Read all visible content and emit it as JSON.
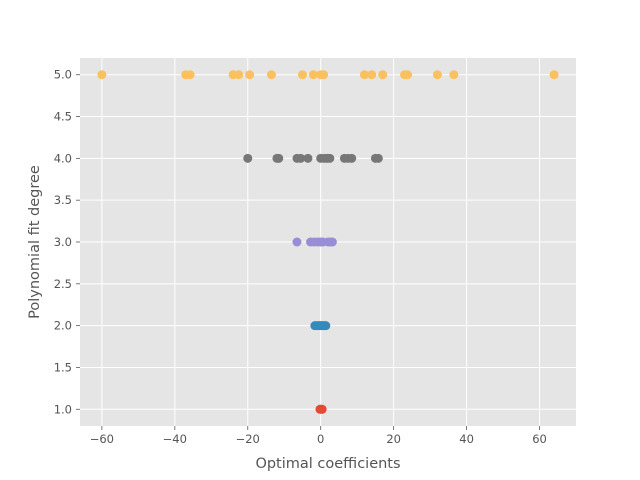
{
  "chart_data": {
    "type": "scatter",
    "xlabel": "Optimal coefficients",
    "ylabel": "Polynomial fit degree",
    "xlim": [
      -66,
      70
    ],
    "ylim": [
      0.8,
      5.2
    ],
    "xticks": [
      -60,
      -40,
      -20,
      0,
      20,
      40,
      60
    ],
    "yticks": [
      1.0,
      1.5,
      2.0,
      2.5,
      3.0,
      3.5,
      4.0,
      4.5,
      5.0
    ],
    "xtick_labels": [
      "−60",
      "−40",
      "−20",
      "0",
      "20",
      "40",
      "60"
    ],
    "ytick_labels": [
      "1.0",
      "1.5",
      "2.0",
      "2.5",
      "3.0",
      "3.5",
      "4.0",
      "4.5",
      "5.0"
    ],
    "grid": true,
    "style": "ggplot",
    "series": [
      {
        "color": "#E24A33",
        "x": [
          -0.2,
          0.1,
          0.4
        ],
        "y": [
          1,
          1,
          1
        ]
      },
      {
        "color": "#348ABD",
        "x": [
          -1.6,
          -1.1,
          -0.6,
          -0.2,
          0.2,
          0.6,
          1.0,
          1.4
        ],
        "y": [
          2,
          2,
          2,
          2,
          2,
          2,
          2,
          2
        ]
      },
      {
        "color": "#988ED5",
        "x": [
          -6.5,
          -2.8,
          -1.8,
          -0.8,
          0.0,
          0.6,
          2.0,
          2.6,
          3.2
        ],
        "y": [
          3,
          3,
          3,
          3,
          3,
          3,
          3,
          3,
          3
        ]
      },
      {
        "color": "#777777",
        "x": [
          -20.0,
          -12.0,
          -11.5,
          -6.5,
          -5.5,
          -3.5,
          0.0,
          1.0,
          1.8,
          2.5,
          6.5,
          7.5,
          8.5,
          15.0,
          15.8
        ],
        "y": [
          4,
          4,
          4,
          4,
          4,
          4,
          4,
          4,
          4,
          4,
          4,
          4,
          4,
          4,
          4
        ]
      },
      {
        "color": "#FBC15E",
        "x": [
          -60.0,
          -37.0,
          -35.8,
          -24.0,
          -22.5,
          -19.5,
          -13.5,
          -5.0,
          -2.0,
          0.0,
          0.8,
          12.0,
          14.0,
          17.0,
          23.0,
          23.8,
          32.0,
          36.5,
          64.0
        ],
        "y": [
          5,
          5,
          5,
          5,
          5,
          5,
          5,
          5,
          5,
          5,
          5,
          5,
          5,
          5,
          5,
          5,
          5,
          5,
          5
        ]
      }
    ]
  }
}
